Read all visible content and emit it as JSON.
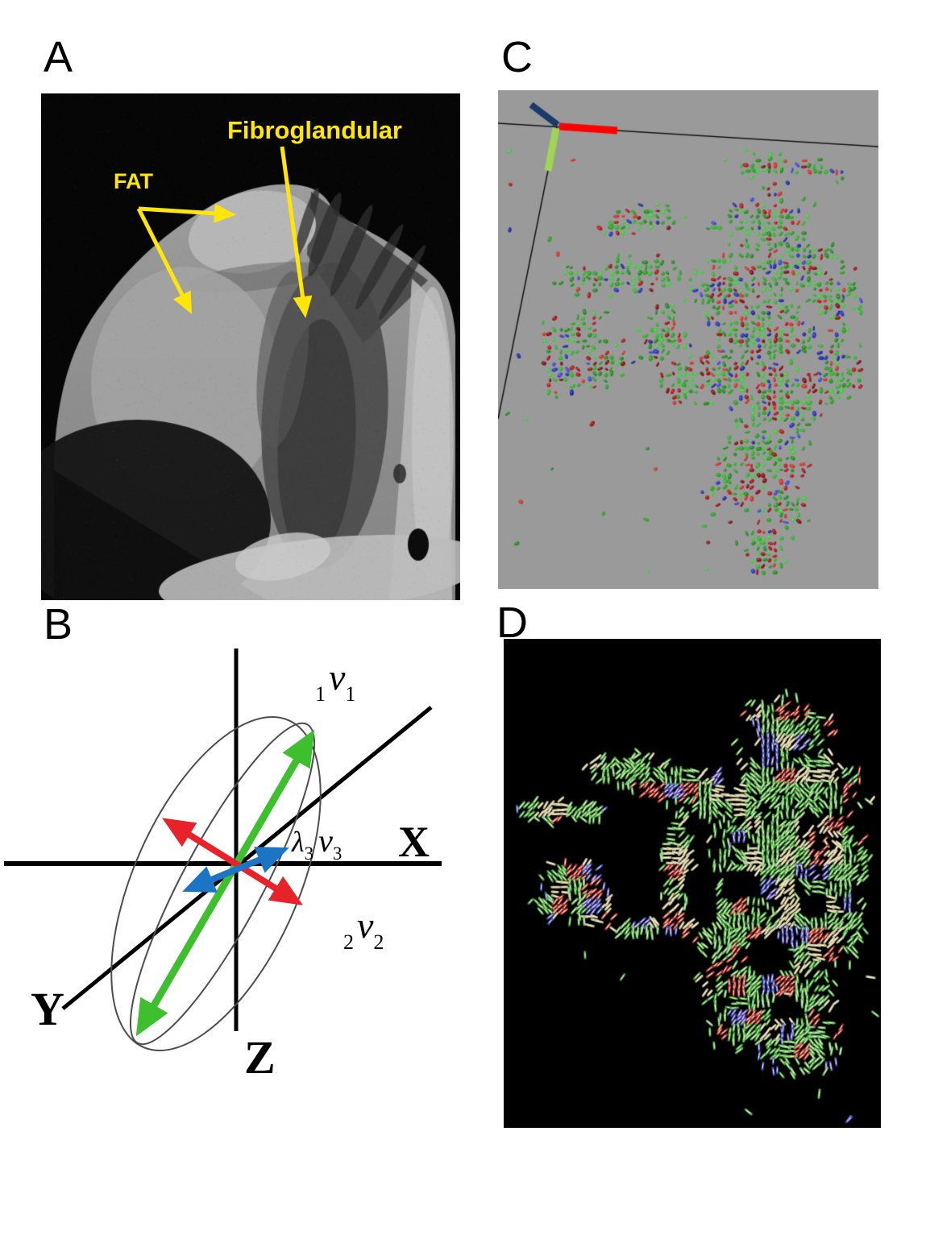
{
  "figure": {
    "background": "#ffffff"
  },
  "panel_a": {
    "label": "A",
    "annotation_color": "#ffe608",
    "annotations": {
      "fat": "FAT",
      "fibroglandular": "Fibroglandular"
    }
  },
  "panel_b": {
    "label": "B",
    "axis_labels": {
      "x": "X",
      "y": "Y",
      "z": "Z"
    },
    "axis_color": "#000000",
    "ellipse_outline_color": "#4d4d4d",
    "eigenvectors": {
      "v1": {
        "pre_sub": "1",
        "symbol": "v",
        "sub": "1",
        "color": "#3dbf2e"
      },
      "v2": {
        "pre_sub": "2",
        "symbol": "v",
        "sub": "2",
        "color": "#e8222a"
      },
      "v3": {
        "lambda": "λ",
        "lambda_sub": "3",
        "symbol": "v",
        "sub": "3",
        "color": "#1c74c5"
      }
    }
  },
  "panel_c": {
    "label": "C",
    "background_color": "#9a9a9a",
    "frame_line_color": "#141414",
    "axis_indicator": {
      "up_left_color": "#1b3a6b",
      "right_color": "#ff0000",
      "down_color": "#9fd455"
    },
    "glyph_palette": {
      "green": [
        "#2fb32a",
        "#27a01f",
        "#45c840",
        "#1f8c1a"
      ],
      "red": [
        "#b2191b",
        "#9c1412",
        "#d03026",
        "#7f0f0e"
      ],
      "blue": [
        "#2634bd",
        "#1c27a0",
        "#3a49d6"
      ]
    }
  },
  "panel_d": {
    "label": "D",
    "background_color": "#000000",
    "stick_palette": {
      "green": [
        "#5ec353",
        "#3fae37",
        "#77d06a"
      ],
      "red": [
        "#c23531",
        "#a62724",
        "#d8524a"
      ],
      "blue": [
        "#4553c9",
        "#6a5fd8"
      ],
      "cream": [
        "#ded5a8",
        "#cfc79b"
      ],
      "core": "#fdf6df"
    }
  }
}
